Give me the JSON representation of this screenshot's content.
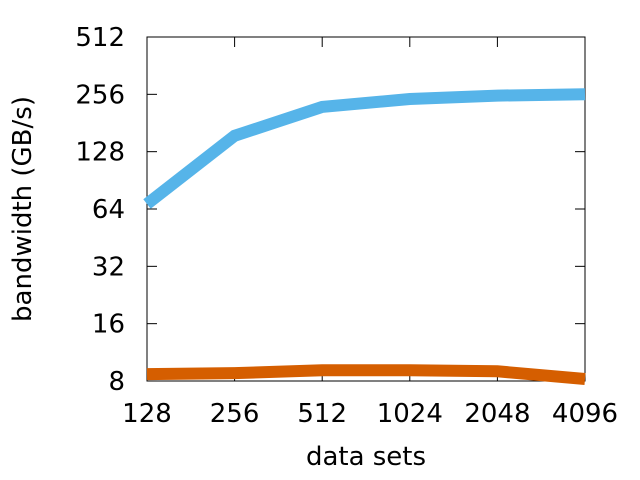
{
  "chart_data": {
    "type": "line",
    "xlabel": "data sets",
    "ylabel": "bandwidth (GB/s)",
    "x_scale": "log2",
    "y_scale": "log2",
    "x": [
      128,
      256,
      512,
      1024,
      2048,
      4096
    ],
    "x_ticks": [
      "128",
      "256",
      "512",
      "1024",
      "2048",
      "4096"
    ],
    "y_ticks": [
      "8",
      "16",
      "32",
      "64",
      "128",
      "256",
      "512"
    ],
    "y_tick_values": [
      8,
      16,
      32,
      64,
      128,
      256,
      512
    ],
    "xlim": [
      128,
      4096
    ],
    "ylim": [
      8,
      512
    ],
    "grid": false,
    "legend": "none",
    "series": [
      {
        "color": "#56b4e9",
        "values": [
          68,
          155,
          220,
          242,
          252,
          256
        ]
      },
      {
        "color": "#d55e00",
        "values": [
          8.7,
          8.8,
          9.1,
          9.1,
          9.0,
          8.2
        ]
      }
    ]
  }
}
